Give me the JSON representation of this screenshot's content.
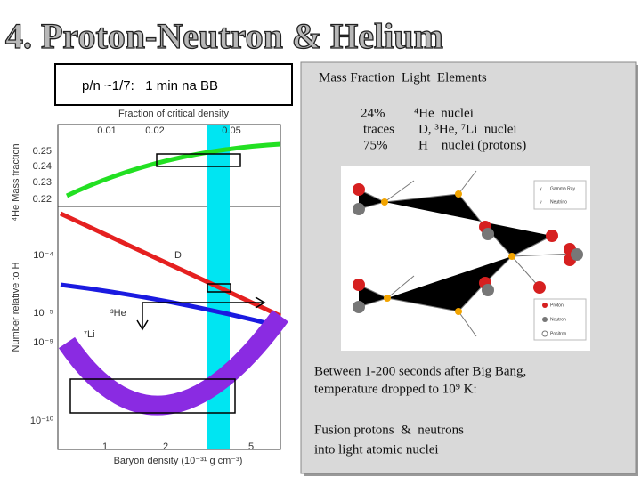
{
  "header": {
    "title": "4. Proton-Neutron & Helium"
  },
  "note_box": {
    "text": "p/n ~1/7:   1 min na BB"
  },
  "figure": {
    "top_axis_label": "Fraction of critical density",
    "top_ticks": [
      "0.01",
      "0.02",
      "0.05"
    ],
    "upper_y_label": "⁴He Mass fraction",
    "upper_ticks": [
      "0.25",
      "0.24",
      "0.23",
      "0.22"
    ],
    "lower_y_label": "Number relative to H",
    "lower_ticks": [
      "10⁻⁴",
      "10⁻⁵",
      "10⁻⁹",
      "10⁻¹⁰"
    ],
    "curve_labels": [
      "D",
      "³He",
      "⁷Li"
    ],
    "bottom_ticks": [
      "1",
      "2",
      "5"
    ],
    "x_label": "Baryon density (10⁻³¹ g cm⁻³)"
  },
  "panel": {
    "heading": "Mass Fraction  Light  Elements",
    "rows": [
      [
        "24%",
        "⁴He  nuclei"
      ],
      [
        "traces",
        "D, ³He, ⁷Li  nuclei"
      ],
      [
        "75%",
        "H    nuclei (protons)"
      ]
    ],
    "legend_symbols": [
      "γ",
      "ν"
    ],
    "diagram_legend": [
      "Gamma Ray",
      "Neutrino",
      "Proton",
      "Neutron",
      "Positron"
    ],
    "paragraph_1": [
      "Between 1-200 seconds after Big Bang,",
      "temperature dropped to 10⁹ K:"
    ],
    "paragraph_2": [
      "Fusion protons  &  neutrons",
      "into light atomic nuclei"
    ]
  }
}
